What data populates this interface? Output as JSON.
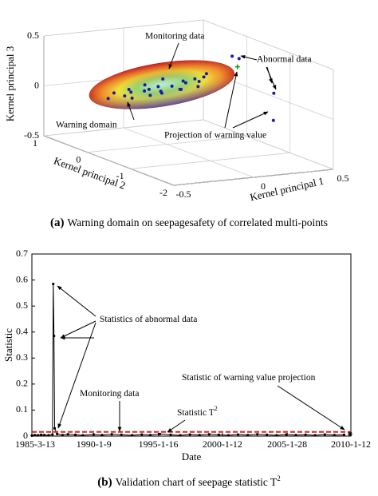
{
  "chart_data": [
    {
      "type": "scatter3d",
      "xlabel": "Kernel principal 1",
      "ylabel": "Kernel principal 2",
      "zlabel": "Kernel principal 3",
      "xlim": [
        -0.5,
        0.5
      ],
      "ylim": [
        -2,
        1
      ],
      "zlim": [
        -0.5,
        0.5
      ],
      "xticks": [
        -0.5,
        0,
        0.5
      ],
      "yticks": [
        -2,
        -1,
        0,
        1
      ],
      "zticks": [
        -0.5,
        0,
        0.5
      ],
      "grid": true,
      "region_label": "Warning domain",
      "series": [
        {
          "name": "Monitoring data",
          "color": "#1a1aa6",
          "marker": "dot",
          "x": [
            -0.45,
            -0.4,
            -0.36,
            -0.32,
            -0.28,
            -0.25,
            -0.22,
            -0.18,
            -0.15,
            -0.12,
            -0.08,
            -0.05,
            -0.02,
            0.02,
            0.05,
            0.08,
            0.12,
            0.15,
            0.18,
            -0.3,
            -0.2,
            -0.1,
            0.0,
            0.1
          ],
          "y": [
            -0.3,
            -0.25,
            -0.35,
            -0.3,
            -0.2,
            -0.4,
            -0.3,
            -0.25,
            -0.35,
            -0.3,
            -0.2,
            -0.3,
            -0.4,
            -0.3,
            -0.25,
            -0.35,
            -0.3,
            -0.3,
            -0.25,
            -0.3,
            -0.35,
            -0.25,
            -0.3,
            -0.35
          ],
          "z": [
            0.08,
            0.12,
            0.1,
            0.15,
            0.1,
            0.14,
            0.18,
            0.12,
            0.16,
            0.1,
            0.2,
            0.14,
            0.12,
            0.18,
            0.15,
            0.2,
            0.16,
            0.2,
            0.22,
            0.06,
            0.08,
            0.07,
            0.1,
            0.12
          ]
        },
        {
          "name": "Abnormal data",
          "color": "#1a1aa6",
          "marker": "dot",
          "x": [
            0.3,
            0.33,
            0.48,
            0.45
          ],
          "y": [
            -0.4,
            -0.45,
            -0.7,
            -0.8
          ],
          "z": [
            0.4,
            0.38,
            0.05,
            -0.2
          ]
        },
        {
          "name": "Projection of warning value",
          "color": "#1a9a1a",
          "marker": "plus",
          "x": [
            0.32
          ],
          "y": [
            -0.45
          ],
          "z": [
            0.3
          ]
        }
      ],
      "caption": {
        "label": "(a)",
        "text": "Warning domain on seepagesafety of correlated multi-points"
      }
    },
    {
      "type": "line",
      "xlabel": "Date",
      "ylabel": "Statistic",
      "xlim": [
        "1985-3-13",
        "2010-1-12"
      ],
      "ylim": [
        0,
        0.7
      ],
      "xticks": [
        "1985-3-13",
        "1990-1-9",
        "1995-1-16",
        "2000-1-12",
        "2005-1-28",
        "2010-1-12"
      ],
      "yticks": [
        0,
        0.1,
        0.2,
        0.3,
        0.4,
        0.5,
        0.6,
        0.7
      ],
      "series": [
        {
          "color": "#000000",
          "marker": "dot",
          "dash": false,
          "x": [
            "1985-3-13",
            "1985-6-1",
            "1985-9-1",
            "1985-12-1",
            "1986-3-1",
            "1986-7-1",
            "1986-10-20",
            "1986-11-10",
            "1986-12-1",
            "1986-12-20",
            "1987-3-1",
            "1987-8-1",
            "1988-1-1",
            "1988-8-1",
            "1989-3-1",
            "1990-1-1",
            "1990-9-1",
            "1991-6-1",
            "1992-3-1",
            "1993-1-1",
            "1993-10-1",
            "1994-6-1",
            "1995-3-1",
            "1996-1-1",
            "1996-10-1",
            "1997-7-1",
            "1998-4-1",
            "1999-1-1",
            "1999-10-1",
            "2000-7-1",
            "2001-4-1",
            "2002-1-1",
            "2002-10-1",
            "2003-7-1",
            "2004-4-1",
            "2005-1-1",
            "2005-10-1",
            "2006-7-1",
            "2007-4-1",
            "2008-1-1",
            "2008-10-1",
            "2009-7-1"
          ],
          "values": [
            0.002,
            0.004,
            0.003,
            0.005,
            0.004,
            0.003,
            0.006,
            0.585,
            0.385,
            0.03,
            0.008,
            0.004,
            0.007,
            0.005,
            0.003,
            0.006,
            0.004,
            0.007,
            0.005,
            0.003,
            0.006,
            0.004,
            0.008,
            0.005,
            0.003,
            0.006,
            0.004,
            0.007,
            0.005,
            0.003,
            0.006,
            0.004,
            0.007,
            0.005,
            0.003,
            0.006,
            0.004,
            0.005,
            0.003,
            0.006,
            0.004,
            0.005
          ]
        },
        {
          "color": "#e0201c",
          "marker": "none",
          "dash": true,
          "x": [
            "1985-3-13",
            "2010-1-12"
          ],
          "values": [
            0.016,
            0.016
          ]
        },
        {
          "color": "#000000",
          "marker": "asterisk",
          "dash": false,
          "x": [
            "2009-12-20"
          ],
          "values": [
            0.008
          ]
        }
      ],
      "annotations": [
        {
          "text": "Statistics of abnormal data"
        },
        {
          "text": "Statistic of warning value projection"
        },
        {
          "text": "Monitoring data"
        },
        {
          "text": "Statistic T",
          "sup": "2"
        }
      ],
      "caption": {
        "label": "(b)",
        "text": "Validation chart of seepage statistic T",
        "sup": "2"
      }
    }
  ]
}
